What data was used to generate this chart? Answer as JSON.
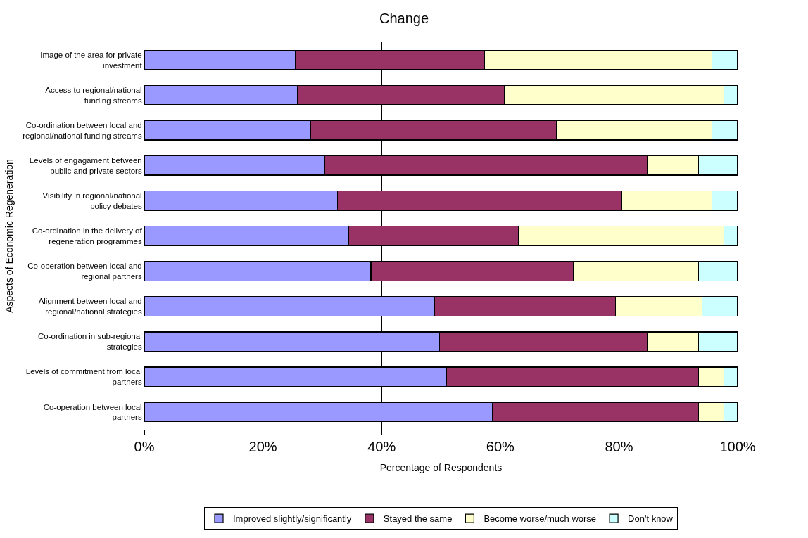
{
  "chart_data": {
    "type": "bar",
    "orientation": "horizontal",
    "stacked": true,
    "title": "Change",
    "xlabel": "Percentage of Respondents",
    "ylabel": "Aspects of Economic Regeneration",
    "categories": [
      "Image of the area for private investment",
      "Access to regional/national funding streams",
      "Co-ordination between local and regional/national funding streams",
      "Levels of engagament between public and private sectors",
      "Visibility in regional/national policy debates",
      "Co-ordination in the delivery of regeneration programmes",
      "Co-operation between local and regional partners",
      "Alignment between local and regional/national strategies",
      "Co-ordination in sub-regional strategies",
      "Levels of commitment from local partners",
      "Co-operation between local partners"
    ],
    "series": [
      {
        "name": "Improved slightly/significantly",
        "color": "#9999ff",
        "values": [
          25.4,
          25.8,
          28.1,
          30.4,
          32.6,
          34.5,
          38.2,
          48.9,
          49.8,
          50.9,
          58.7
        ]
      },
      {
        "name": "Stayed the same",
        "color": "#993366",
        "values": [
          32.0,
          34.9,
          41.4,
          54.4,
          47.9,
          28.6,
          34.1,
          30.5,
          35.0,
          42.5,
          34.7
        ]
      },
      {
        "name": "Become worse/much worse",
        "color": "#ffffcc",
        "values": [
          38.3,
          37.0,
          26.2,
          8.6,
          15.2,
          34.6,
          21.1,
          14.6,
          8.6,
          4.3,
          4.3
        ]
      },
      {
        "name": "Don't know",
        "color": "#ccffff",
        "values": [
          4.3,
          2.3,
          4.3,
          6.6,
          4.3,
          2.3,
          6.6,
          6.0,
          6.6,
          2.3,
          2.3
        ]
      }
    ],
    "xlim": [
      0,
      100
    ],
    "xticks": [
      {
        "value": 0,
        "label": "0%"
      },
      {
        "value": 20,
        "label": "20%"
      },
      {
        "value": 40,
        "label": "40%"
      },
      {
        "value": 60,
        "label": "60%"
      },
      {
        "value": 80,
        "label": "80%"
      },
      {
        "value": 100,
        "label": "100%"
      }
    ],
    "grid": "x",
    "legend": "bottom"
  }
}
